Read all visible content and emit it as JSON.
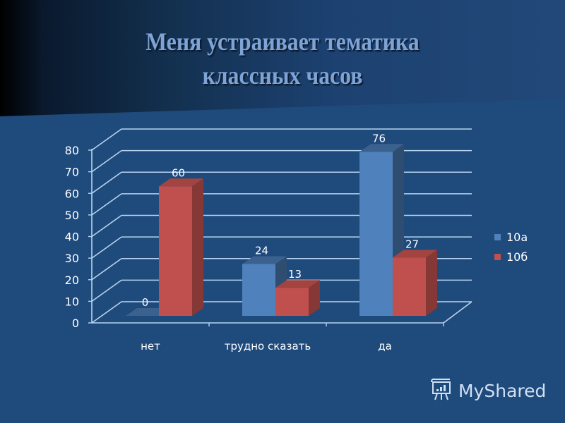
{
  "slide": {
    "title_line1": "Меня устраивает тематика",
    "title_line2": "классных часов"
  },
  "chart_data": {
    "type": "bar",
    "title": "Меня устраивает тематика классных часов",
    "categories": [
      "нет",
      "трудно сказать",
      "да"
    ],
    "series": [
      {
        "name": "10а",
        "color": "#4f81bd",
        "values": [
          0,
          24,
          76
        ]
      },
      {
        "name": "10б",
        "color": "#c0504d",
        "values": [
          60,
          13,
          27
        ]
      }
    ],
    "yticks": [
      "0",
      "10",
      "20",
      "30",
      "40",
      "50",
      "60",
      "70",
      "80"
    ],
    "ylim": [
      0,
      80
    ],
    "xlabel": "",
    "ylabel": "",
    "grid": true,
    "legend_position": "right",
    "style": "3d-clustered-column"
  },
  "legend": {
    "items": [
      {
        "label": "10а",
        "color": "#4f81bd"
      },
      {
        "label": "10б",
        "color": "#c0504d"
      }
    ]
  },
  "watermark": {
    "text": "MyShared"
  }
}
